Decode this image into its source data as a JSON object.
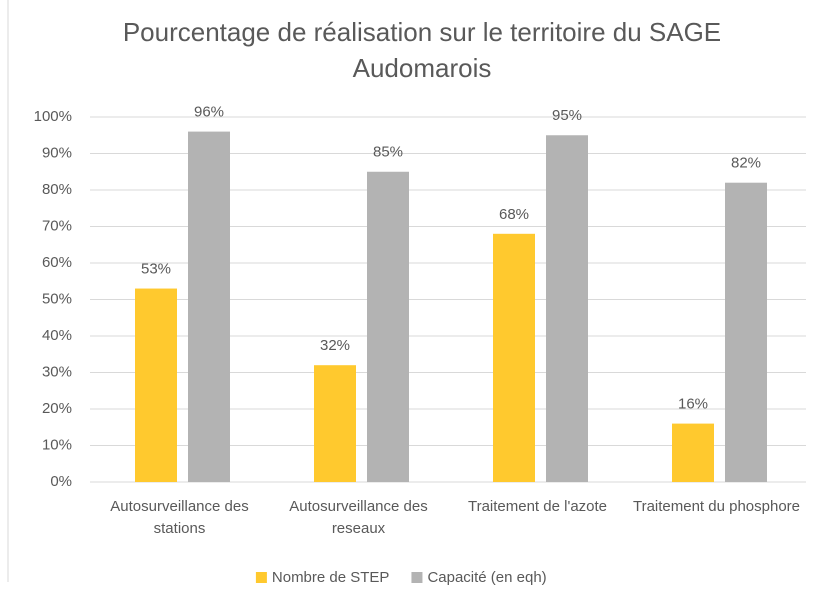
{
  "chart_data": {
    "type": "bar",
    "title": "Pourcentage de réalisation sur le territoire du SAGE Audomarois",
    "categories": [
      "Autosurveillance des stations",
      "Autosurveillance des reseaux",
      "Traitement de l'azote",
      "Traitement du phosphore"
    ],
    "series": [
      {
        "name": "Nombre de STEP",
        "color": "#ffc92e",
        "values": [
          53,
          32,
          68,
          16
        ],
        "value_labels": [
          "53%",
          "32%",
          "68%",
          "16%"
        ]
      },
      {
        "name": "Capacité (en eqh)",
        "color": "#b3b3b3",
        "values": [
          96,
          85,
          95,
          82
        ],
        "value_labels": [
          "96%",
          "85%",
          "95%",
          "82%"
        ]
      }
    ],
    "ylim": [
      0,
      100
    ],
    "yticks": [
      {
        "value": 0,
        "label": "0%"
      },
      {
        "value": 10,
        "label": "10%"
      },
      {
        "value": 20,
        "label": "20%"
      },
      {
        "value": 30,
        "label": "30%"
      },
      {
        "value": 40,
        "label": "40%"
      },
      {
        "value": 50,
        "label": "50%"
      },
      {
        "value": 60,
        "label": "60%"
      },
      {
        "value": 70,
        "label": "70%"
      },
      {
        "value": 80,
        "label": "80%"
      },
      {
        "value": 90,
        "label": "90%"
      },
      {
        "value": 100,
        "label": "100%"
      }
    ],
    "grid": true,
    "legend": "bottom"
  }
}
